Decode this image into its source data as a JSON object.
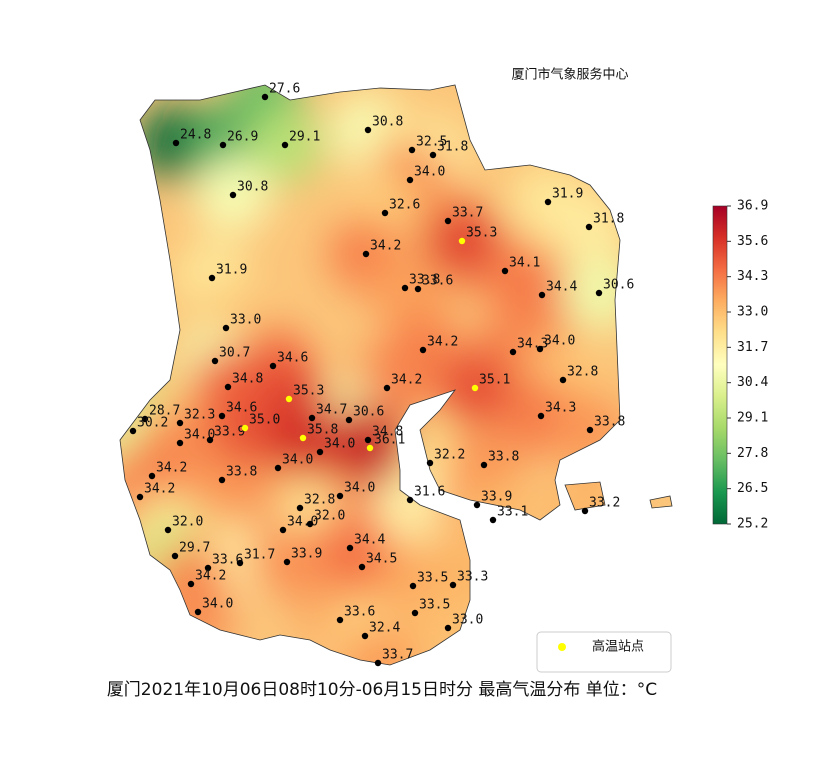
{
  "chart_data": {
    "type": "map",
    "title": "厦门市气象服务中心",
    "caption": "厦门2021年10月06日08时10分-06月15日时分  最高气温分布  单位：°C",
    "colorbar": {
      "lim": [
        25.2,
        36.9
      ],
      "ticks": [
        {
          "value": 25.2,
          "label": "25.2"
        },
        {
          "value": 26.5,
          "label": "26.5"
        },
        {
          "value": 27.8,
          "label": "27.8"
        },
        {
          "value": 29.1,
          "label": "29.1"
        },
        {
          "value": 30.4,
          "label": "30.4"
        },
        {
          "value": 31.7,
          "label": "31.7"
        },
        {
          "value": 33,
          "label": "33.0"
        },
        {
          "value": 34.3,
          "label": "34.3"
        },
        {
          "value": 35.6,
          "label": "35.6"
        },
        {
          "value": 36.9,
          "label": "36.9"
        }
      ]
    },
    "stations": {
      "color": "#000000",
      "values": [
        27.6,
        24.8,
        26.9,
        29.1,
        30.8,
        32.5,
        31.8,
        34,
        30.8,
        32.6,
        33.7,
        31.9,
        31.8,
        34.2,
        34.1,
        33.8,
        33.6,
        34.4,
        30.6,
        31.9,
        33,
        34.2,
        34.3,
        34,
        30.7,
        34.6,
        32.8,
        34.8,
        34.2,
        28.7,
        30.2,
        32.3,
        34.6,
        34.7,
        30.6,
        34.3,
        33.8,
        34,
        33.9,
        34,
        34.8,
        32.2,
        33.8,
        34.2,
        34,
        33.8,
        34.2,
        34,
        31.6,
        33.9,
        33.2,
        32.8,
        32,
        34,
        32,
        34.4,
        33.1,
        29.7,
        33.6,
        31.7,
        33.9,
        34.5,
        34.2,
        33.5,
        33.3,
        34,
        33.6,
        33.5,
        33,
        32.4,
        33.7
      ],
      "value_labels": [
        "27.6",
        "24.8",
        "26.9",
        "29.1",
        "30.8",
        "32.5",
        "31.8",
        "34.0",
        "30.8",
        "32.6",
        "33.7",
        "31.9",
        "31.8",
        "34.2",
        "34.1",
        "33.8",
        "33.6",
        "34.4",
        "30.6",
        "31.9",
        "33.0",
        "34.2",
        "34.3",
        "34.0",
        "30.7",
        "34.6",
        "32.8",
        "34.8",
        "34.2",
        "28.7",
        "30.2",
        "32.3",
        "34.6",
        "34.7",
        "30.6",
        "34.3",
        "33.8",
        "34.0",
        "33.9",
        "34.0",
        "34.8",
        "32.2",
        "33.8",
        "34.2",
        "34.0",
        "33.8",
        "34.2",
        "34.0",
        "31.6",
        "33.9",
        "33.2",
        "32.8",
        "32.0",
        "34.0",
        "32.0",
        "34.4",
        "33.1",
        "29.7",
        "33.6",
        "31.7",
        "33.9",
        "34.5",
        "34.2",
        "33.5",
        "33.3",
        "34.0",
        "33.6",
        "33.5",
        "33.0",
        "32.4",
        "33.7"
      ]
    },
    "high_temp_stations": {
      "name": "高温站点",
      "color": "#ffff00",
      "values": [
        35.3,
        35.3,
        35.1,
        35,
        35.8,
        36.1
      ],
      "value_labels": [
        "35.3",
        "35.3",
        "35.1",
        "35.0",
        "35.8",
        "36.1"
      ]
    }
  }
}
